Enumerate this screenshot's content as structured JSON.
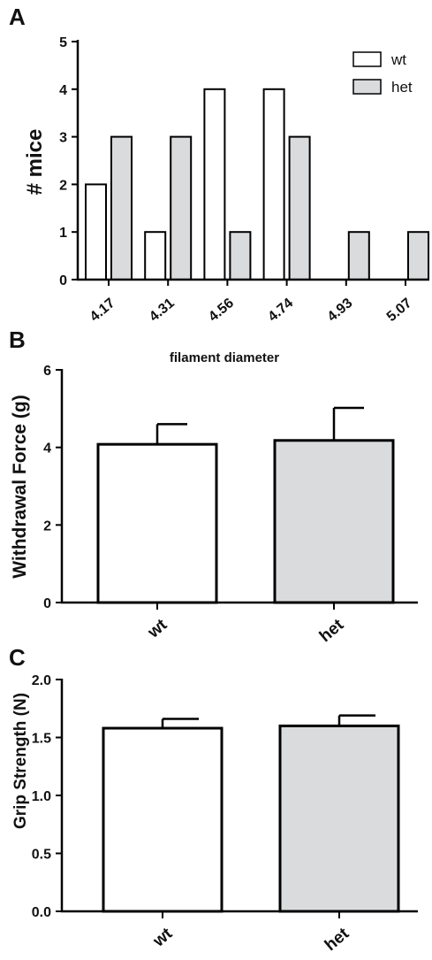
{
  "colors": {
    "wt": "#ffffff",
    "het": "#d9dbdd",
    "stroke": "#000000"
  },
  "chart_data": [
    {
      "panel": "A",
      "type": "bar",
      "categories": [
        "4.17",
        "4.31",
        "4.56",
        "4.74",
        "4.93",
        "5.07"
      ],
      "series": [
        {
          "name": "wt",
          "values": [
            2,
            1,
            4,
            4,
            0,
            0
          ]
        },
        {
          "name": "het",
          "values": [
            3,
            3,
            1,
            3,
            1,
            1
          ]
        }
      ],
      "xlabel": "filament diameter",
      "ylabel": "# mice",
      "ylim": [
        0,
        5
      ],
      "yticks": [
        "0",
        "1",
        "2",
        "3",
        "4",
        "5"
      ],
      "legend_position": "top-right",
      "grid": false
    },
    {
      "panel": "B",
      "type": "bar",
      "categories": [
        "wt",
        "het"
      ],
      "values": [
        4.08,
        4.18
      ],
      "errors": [
        0.52,
        0.84
      ],
      "xlabel": "",
      "ylabel": "Withdrawal  Force (g)",
      "ylim": [
        0,
        6
      ],
      "yticks": [
        "0",
        "2",
        "4",
        "6"
      ],
      "grid": false
    },
    {
      "panel": "C",
      "type": "bar",
      "categories": [
        "wt",
        "het"
      ],
      "values": [
        1.58,
        1.6
      ],
      "errors": [
        0.08,
        0.09
      ],
      "xlabel": "",
      "ylabel": "Grip Strength (N)",
      "ylim": [
        0,
        2.0
      ],
      "yticks": [
        "0.0",
        "0.5",
        "1.0",
        "1.5",
        "2.0"
      ],
      "grid": false
    }
  ]
}
